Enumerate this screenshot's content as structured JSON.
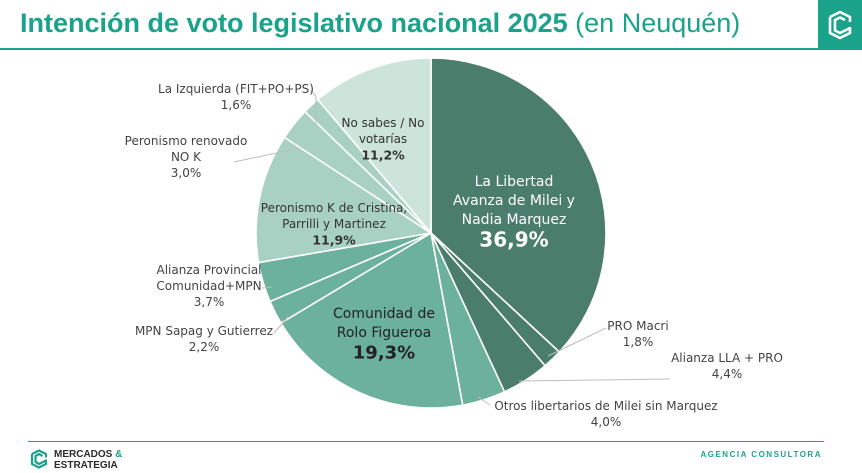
{
  "header": {
    "title_bold": "Intención de voto legislativo nacional 2025",
    "title_rest": "(en Neuquén)"
  },
  "footer": {
    "brand_line1": "MERCADOS",
    "brand_amp": "&",
    "brand_line2": "ESTRATEGIA",
    "agency": "AGENCIA CONSULTORA"
  },
  "colors": {
    "accent": "#1aa38a",
    "slice_dark": "#4b7d6c",
    "slice_medium": "#6cb19c",
    "slice_light": "#a9d1c3",
    "slice_pale": "#cde4da"
  },
  "chart_data": {
    "type": "pie",
    "title": "Intención de voto legislativo nacional 2025 (en Neuquén)",
    "start": "12 o'clock, clockwise",
    "slices": [
      {
        "id": "lla",
        "label": [
          "La Libertad",
          "Avanza de Milei y",
          "Nadia Marquez"
        ],
        "value_label": "36,9%",
        "value": 36.9,
        "color": "#4b7d6c",
        "label_inside": true,
        "text_color": "#ffffff"
      },
      {
        "id": "pro",
        "label": [
          "PRO Macri"
        ],
        "value_label": "1,8%",
        "value": 1.8,
        "color": "#4b7d6c",
        "label_inside": false
      },
      {
        "id": "alianza-lla-pro",
        "label": [
          "Alianza LLA + PRO"
        ],
        "value_label": "4,4%",
        "value": 4.4,
        "color": "#4b7d6c",
        "label_inside": false
      },
      {
        "id": "otros-libertarios",
        "label": [
          "Otros libertarios de Milei sin Marquez"
        ],
        "value_label": "4,0%",
        "value": 4.0,
        "color": "#6cb19c",
        "label_inside": false
      },
      {
        "id": "comunidad",
        "label": [
          "Comunidad de",
          "Rolo Figueroa"
        ],
        "value_label": "19,3%",
        "value": 19.3,
        "color": "#6cb19c",
        "label_inside": true,
        "text_color": "#222222"
      },
      {
        "id": "mpn-sapag",
        "label": [
          "MPN Sapag y Gutierrez"
        ],
        "value_label": "2,2%",
        "value": 2.2,
        "color": "#6cb19c",
        "label_inside": false
      },
      {
        "id": "alianza-provincial",
        "label": [
          "Alianza Provincial",
          "Comunidad+MPN"
        ],
        "value_label": "3,7%",
        "value": 3.7,
        "color": "#6cb19c",
        "label_inside": false
      },
      {
        "id": "peronismo-k",
        "label": [
          "Peronismo K de Cristina,",
          "Parrilli y Martinez"
        ],
        "value_label": "11,9%",
        "value": 11.9,
        "color": "#a9d1c3",
        "label_inside": true,
        "text_color": "#333333"
      },
      {
        "id": "peronismo-renovado",
        "label": [
          "Peronismo renovado",
          "NO K"
        ],
        "value_label": "3,0%",
        "value": 3.0,
        "color": "#a9d1c3",
        "label_inside": false
      },
      {
        "id": "izquierda",
        "label": [
          "La Izquierda (FIT+PO+PS)"
        ],
        "value_label": "1,6%",
        "value": 1.6,
        "color": "#a9d1c3",
        "label_inside": false
      },
      {
        "id": "no-sabe",
        "label": [
          "No sabes / No",
          "votarías"
        ],
        "value_label": "11,2%",
        "value": 11.2,
        "color": "#cde4da",
        "label_inside": true,
        "text_color": "#333333"
      }
    ]
  }
}
